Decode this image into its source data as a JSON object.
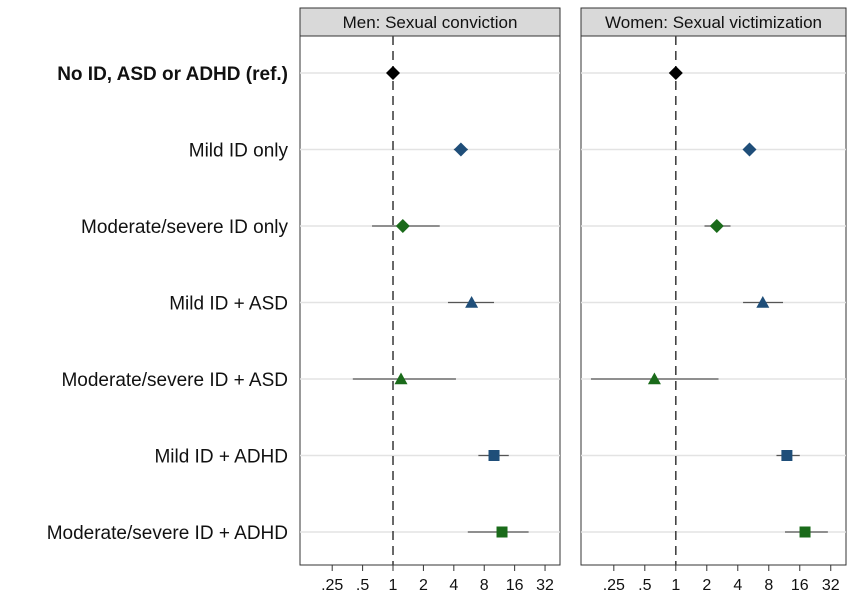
{
  "chart_data": {
    "type": "forest",
    "x_scale": "log2",
    "x_ticks": [
      0.25,
      0.5,
      1,
      2,
      4,
      8,
      16,
      32
    ],
    "x_tick_labels": [
      ".25",
      ".5",
      "1",
      "2",
      "4",
      "8",
      "16",
      "32"
    ],
    "reference_line": 1,
    "categories": [
      "No ID, ASD or ADHD (ref.)",
      "Mild ID only",
      "Moderate/severe ID only",
      "Mild ID + ASD",
      "Moderate/severe ID + ASD",
      "Mild ID + ADHD",
      "Moderate/severe ID + ADHD"
    ],
    "marker_shapes": [
      "diamond",
      "diamond",
      "diamond",
      "triangle",
      "triangle",
      "square",
      "square"
    ],
    "marker_colors": [
      "#000000",
      "#1f4e79",
      "#1a6b1a",
      "#1f4e79",
      "#1a6b1a",
      "#1f4e79",
      "#1a6b1a"
    ],
    "panels": [
      {
        "title": "Men: Sexual conviction",
        "x_range": [
          0.12,
          45
        ],
        "estimates": [
          1,
          4.7,
          1.25,
          6.0,
          1.2,
          10.0,
          12.0
        ],
        "lower": [
          1,
          4.0,
          0.62,
          3.5,
          0.4,
          7.0,
          5.5
        ],
        "upper": [
          1,
          5.5,
          2.9,
          10.0,
          4.2,
          14.0,
          22.0
        ]
      },
      {
        "title": "Women: Sexual victimization",
        "x_range": [
          0.12,
          45
        ],
        "estimates": [
          1,
          5.2,
          2.5,
          7.0,
          0.62,
          12.0,
          18.0
        ],
        "lower": [
          1,
          5.2,
          1.9,
          4.5,
          0.15,
          9.5,
          11.5
        ],
        "upper": [
          1,
          5.2,
          3.4,
          11.0,
          2.6,
          16.0,
          30.0
        ]
      }
    ]
  }
}
